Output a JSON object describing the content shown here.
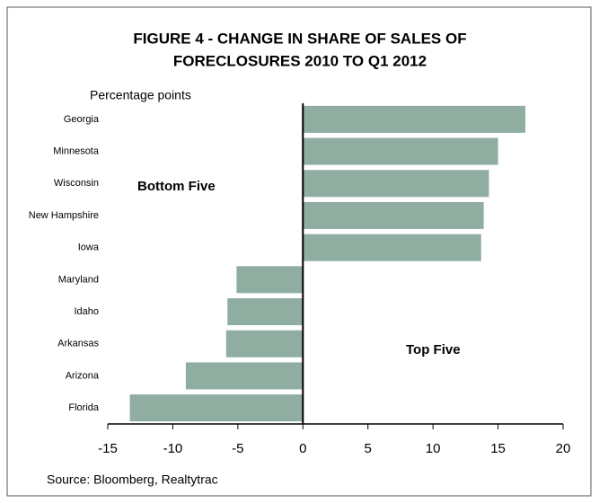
{
  "chart_data": {
    "type": "bar",
    "orientation": "horizontal",
    "title": [
      "FIGURE 4 - CHANGE IN SHARE OF SALES OF",
      "FORECLOSURES 2010 TO Q1 2012"
    ],
    "y_label": "Percentage points",
    "categories": [
      "Georgia",
      "Minnesota",
      "Wisconsin",
      "New Hampshire",
      "Iowa",
      "Maryland",
      "Idaho",
      "Arkansas",
      "Arizona",
      "Florida"
    ],
    "values": [
      17.1,
      15.0,
      14.3,
      13.9,
      13.7,
      -5.1,
      -5.8,
      -5.9,
      -9.0,
      -13.3
    ],
    "color": "#8fada0",
    "xlim": [
      -15,
      20
    ],
    "xticks": [
      -15,
      -10,
      -5,
      0,
      5,
      10,
      15,
      20
    ],
    "annotations": [
      "Bottom Five",
      "Top Five"
    ],
    "source": "Source: Bloomberg, Realtytrac"
  }
}
